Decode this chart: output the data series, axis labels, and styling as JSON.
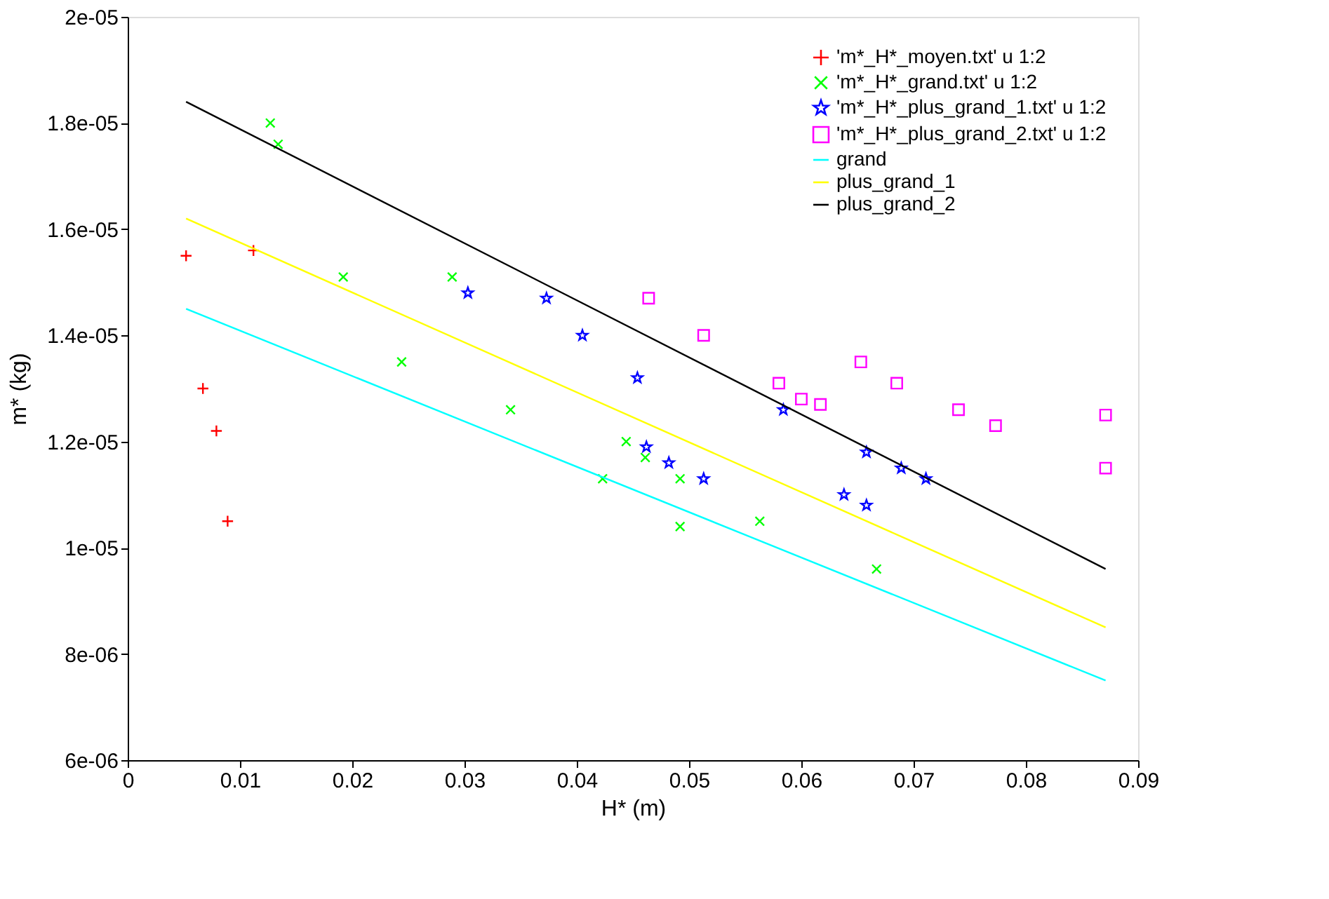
{
  "chart_data": {
    "type": "scatter",
    "xlabel": "H* (m)",
    "ylabel": "m* (kg)",
    "xlim": [
      0,
      0.09
    ],
    "xticks": [
      0,
      0.01,
      0.02,
      0.03,
      0.04,
      0.05,
      0.06,
      0.07,
      0.08,
      0.09
    ],
    "ylim": [
      6e-06,
      2e-05
    ],
    "yticks": [
      {
        "value": 6e-06,
        "label": "6e-06"
      },
      {
        "value": 8e-06,
        "label": "8e-06"
      },
      {
        "value": 1e-05,
        "label": "1e-05"
      },
      {
        "value": 1.2e-05,
        "label": "1.2e-05"
      },
      {
        "value": 1.4e-05,
        "label": "1.4e-05"
      },
      {
        "value": 1.6e-05,
        "label": "1.6e-05"
      },
      {
        "value": 1.8e-05,
        "label": "1.8e-05"
      },
      {
        "value": 2e-05,
        "label": "2e-05"
      }
    ],
    "grid": false,
    "legend": "top right",
    "series": [
      {
        "name": "'m*_H*_moyen.txt' u 1:2",
        "marker": "cross",
        "color": "#ff0000",
        "x": [
          0.0052,
          0.0112,
          0.0067,
          0.0079,
          0.0089
        ],
        "values": [
          1.55e-05,
          1.56e-05,
          1.3e-05,
          1.22e-05,
          1.05e-05
        ]
      },
      {
        "name": "'m*_H*_grand.txt' u 1:2",
        "marker": "x",
        "color": "#00ff00",
        "x": [
          0.0127,
          0.0134,
          0.0192,
          0.0289,
          0.0244,
          0.0341,
          0.0444,
          0.0461,
          0.0423,
          0.0492,
          0.0492,
          0.0563,
          0.0667
        ],
        "values": [
          1.8e-05,
          1.76e-05,
          1.51e-05,
          1.51e-05,
          1.35e-05,
          1.26e-05,
          1.2e-05,
          1.17e-05,
          1.13e-05,
          1.13e-05,
          1.04e-05,
          1.05e-05,
          9.6e-06
        ]
      },
      {
        "name": "'m*_H*_plus_grand_1.txt' u 1:2",
        "marker": "star",
        "color": "#0000ff",
        "x": [
          0.0303,
          0.0373,
          0.0405,
          0.0454,
          0.0462,
          0.0482,
          0.0513,
          0.0584,
          0.0638,
          0.0658,
          0.0658,
          0.0689,
          0.0711
        ],
        "values": [
          1.48e-05,
          1.47e-05,
          1.4e-05,
          1.32e-05,
          1.19e-05,
          1.16e-05,
          1.13e-05,
          1.26e-05,
          1.1e-05,
          1.08e-05,
          1.18e-05,
          1.15e-05,
          1.13e-05
        ]
      },
      {
        "name": "'m*_H*_plus_grand_2.txt' u 1:2",
        "marker": "square",
        "color": "#ff00ff",
        "x": [
          0.0464,
          0.0513,
          0.058,
          0.06,
          0.0617,
          0.0653,
          0.0685,
          0.074,
          0.0773,
          0.0871,
          0.0871
        ],
        "values": [
          1.47e-05,
          1.4e-05,
          1.31e-05,
          1.28e-05,
          1.27e-05,
          1.35e-05,
          1.31e-05,
          1.26e-05,
          1.23e-05,
          1.25e-05,
          1.15e-05
        ]
      },
      {
        "name": "grand",
        "type": "line",
        "marker": "none",
        "line_style": "solid",
        "color": "#00ffff",
        "x": [
          0.0052,
          0.0871
        ],
        "values": [
          1.45e-05,
          7.5e-06
        ]
      },
      {
        "name": "plus_grand_1",
        "type": "line",
        "marker": "none",
        "line_style": "solid",
        "color": "#ffff00",
        "x": [
          0.0052,
          0.0871
        ],
        "values": [
          1.62e-05,
          8.5e-06
        ]
      },
      {
        "name": "plus_grand_2",
        "type": "line",
        "marker": "none",
        "line_style": "solid",
        "color": "#000000",
        "x": [
          0.0052,
          0.0871
        ],
        "values": [
          1.84e-05,
          9.6e-06
        ]
      }
    ]
  }
}
